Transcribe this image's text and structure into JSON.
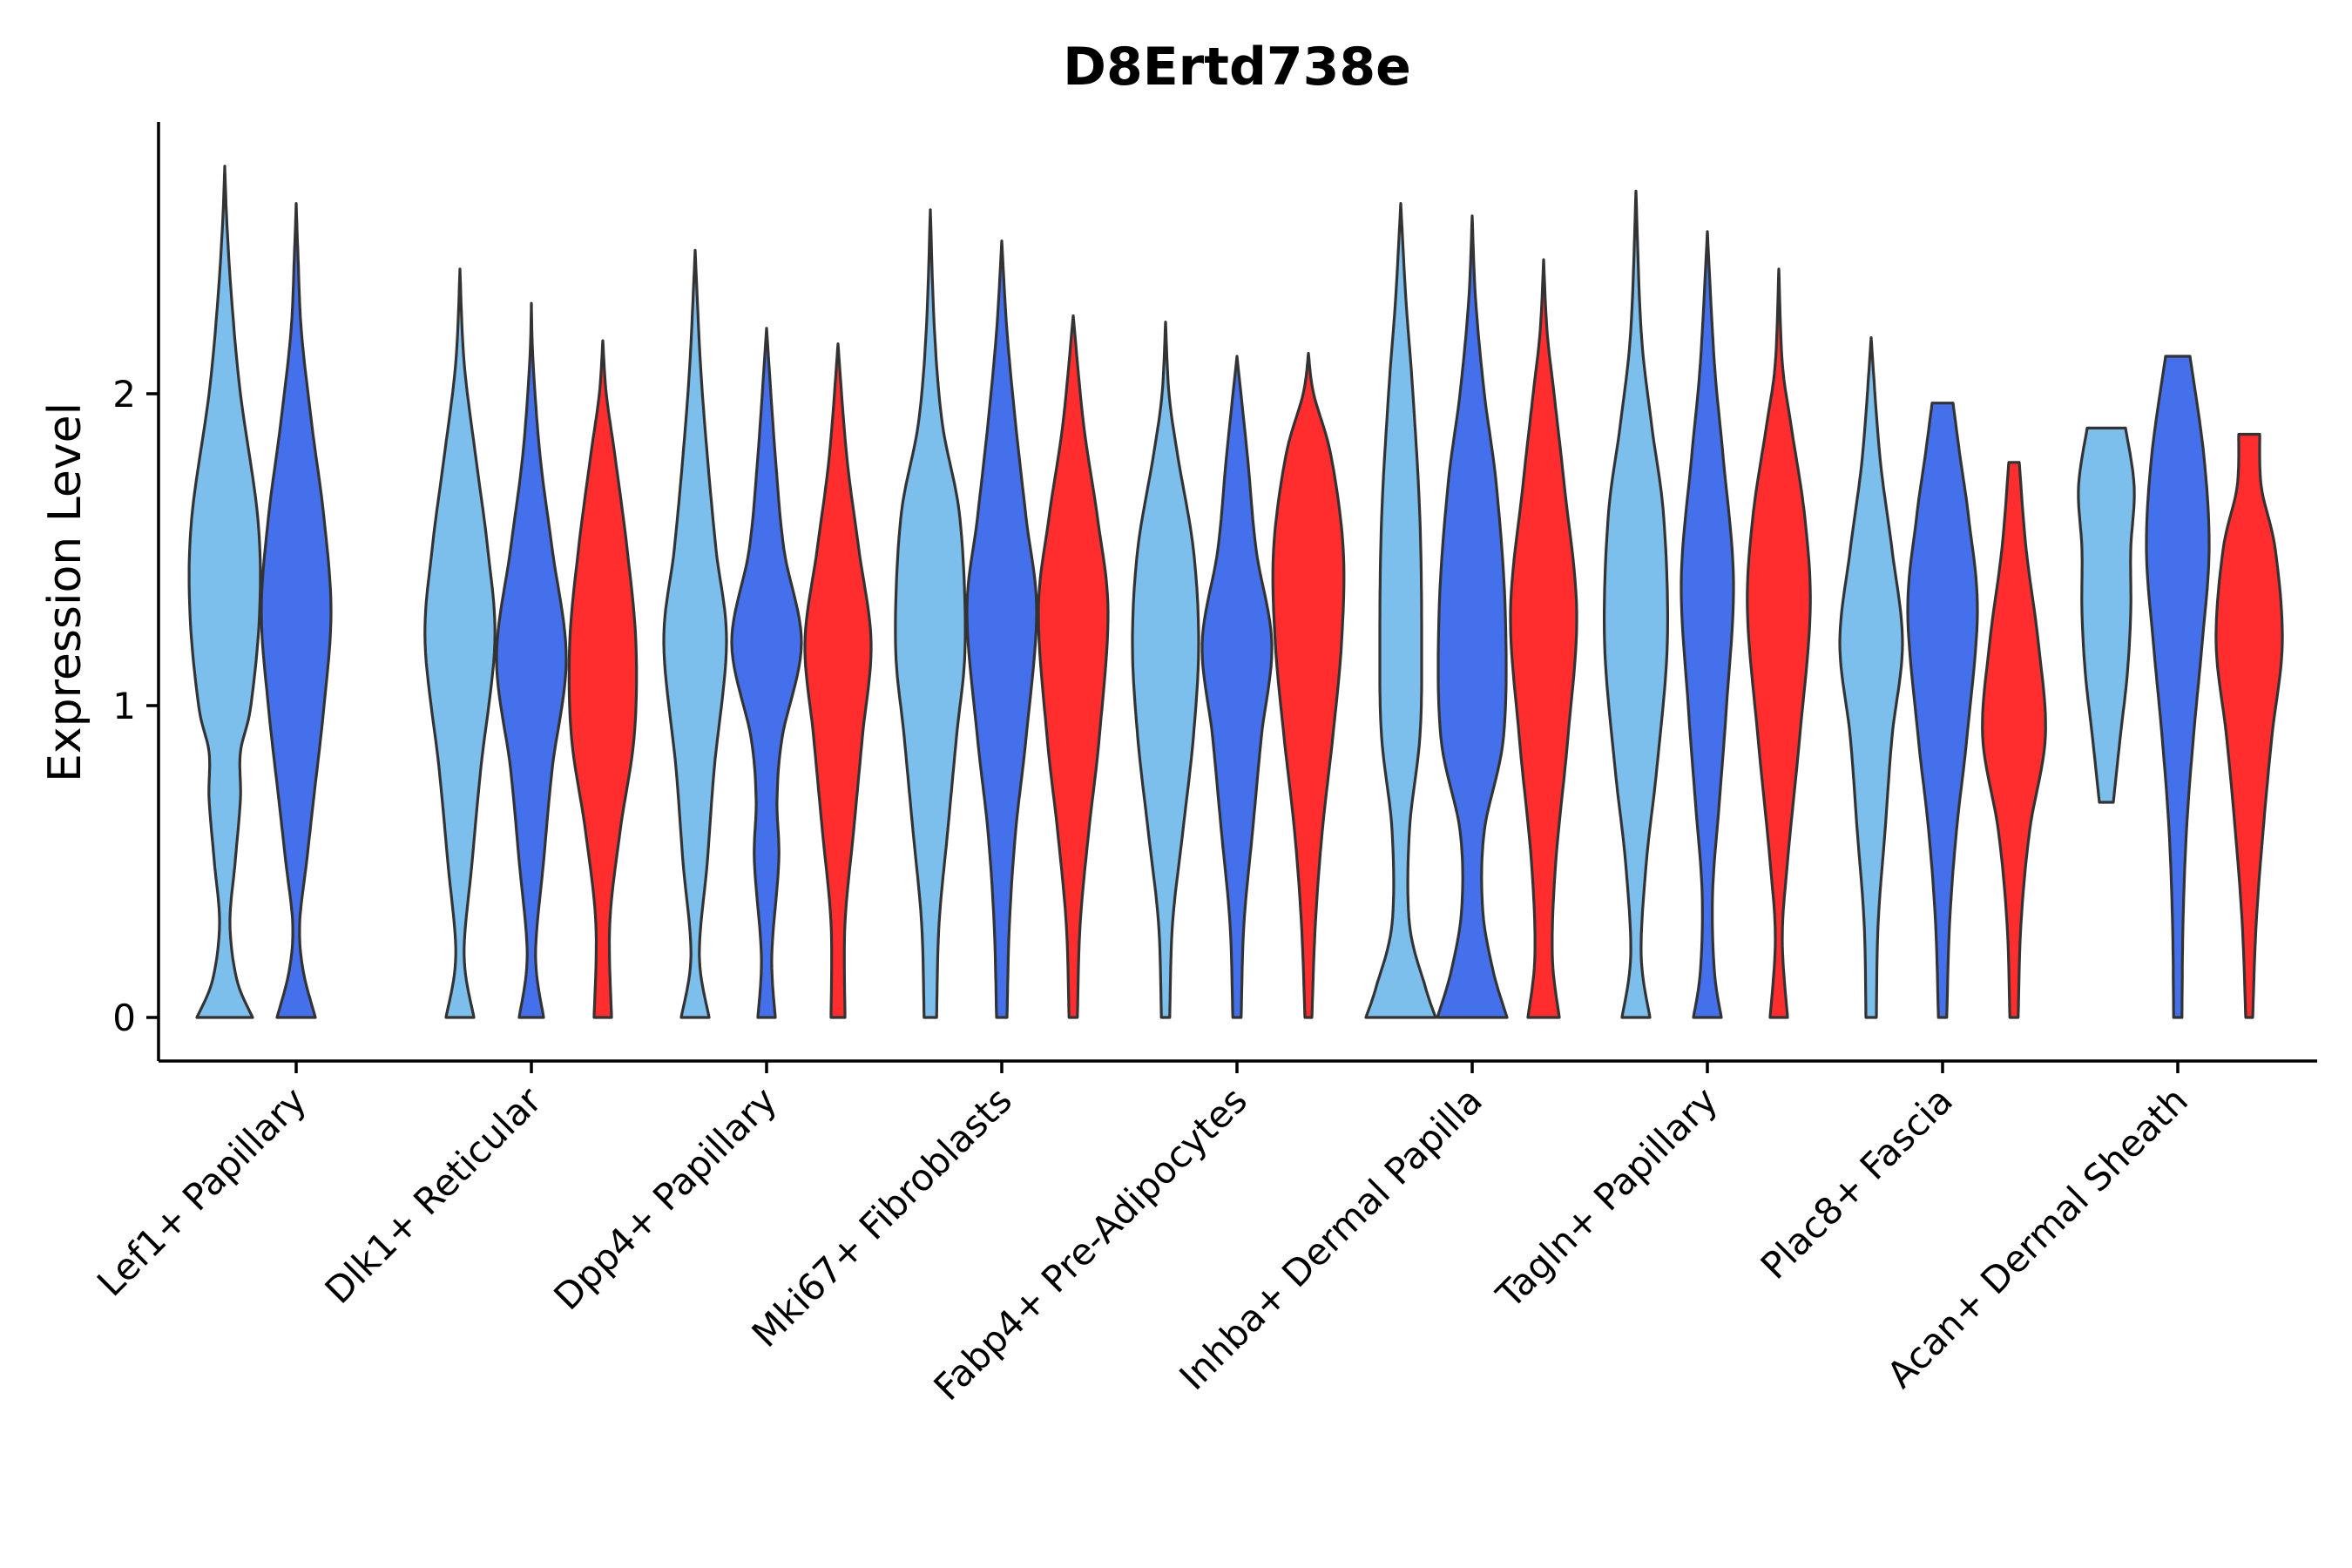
{
  "chart_data": {
    "type": "violin",
    "title": "D8Ertd738e",
    "xlabel": "",
    "ylabel": "Expression Level",
    "ylim": [
      -0.14,
      2.9
    ],
    "yticks": [
      0,
      1,
      2
    ],
    "grid": false,
    "legend": "none",
    "series_colors": [
      "#7DBFEC",
      "#4470EC",
      "#FF2D2D"
    ],
    "categories": [
      "Lef1+ Papillary",
      "Dlk1+ Reticular",
      "Dpp4+ Papillary",
      "Mki67+ Fibroblasts",
      "Fabp4+ Pre-Adipocytes",
      "Inhba+ Dermal Papilla",
      "Tagln+ Papillary",
      "Plac8+ Fascia",
      "Acan+ Dermal Sheath"
    ],
    "violins": [
      {
        "group": 0,
        "series": 0,
        "min": 0,
        "max": 2.73,
        "widths": [
          [
            0,
            0.8
          ],
          [
            0.12,
            0.35
          ],
          [
            0.3,
            0.15
          ],
          [
            0.5,
            0.3
          ],
          [
            0.7,
            0.45
          ],
          [
            0.85,
            0.45
          ],
          [
            1.0,
            0.75
          ],
          [
            1.3,
            1.0
          ],
          [
            1.6,
            0.95
          ],
          [
            2.0,
            0.45
          ],
          [
            2.3,
            0.2
          ],
          [
            2.55,
            0.06
          ],
          [
            2.73,
            0
          ]
        ]
      },
      {
        "group": 0,
        "series": 1,
        "min": 0,
        "max": 2.61,
        "widths": [
          [
            0,
            0.55
          ],
          [
            0.15,
            0.2
          ],
          [
            0.3,
            0.1
          ],
          [
            0.5,
            0.3
          ],
          [
            0.7,
            0.5
          ],
          [
            1.0,
            0.8
          ],
          [
            1.3,
            1.0
          ],
          [
            1.6,
            0.8
          ],
          [
            1.9,
            0.45
          ],
          [
            2.2,
            0.15
          ],
          [
            2.45,
            0.05
          ],
          [
            2.61,
            0
          ]
        ]
      },
      {
        "group": 1,
        "series": 0,
        "min": 0,
        "max": 2.4,
        "widths": [
          [
            0,
            0.4
          ],
          [
            0.2,
            0.12
          ],
          [
            0.5,
            0.35
          ],
          [
            0.8,
            0.6
          ],
          [
            1.2,
            1.0
          ],
          [
            1.5,
            0.8
          ],
          [
            1.8,
            0.45
          ],
          [
            2.1,
            0.12
          ],
          [
            2.4,
            0
          ]
        ]
      },
      {
        "group": 1,
        "series": 1,
        "min": 0,
        "max": 2.29,
        "widths": [
          [
            0,
            0.35
          ],
          [
            0.2,
            0.12
          ],
          [
            0.5,
            0.35
          ],
          [
            0.8,
            0.6
          ],
          [
            1.15,
            1.0
          ],
          [
            1.5,
            0.6
          ],
          [
            1.8,
            0.25
          ],
          [
            2.1,
            0.05
          ],
          [
            2.29,
            0
          ]
        ]
      },
      {
        "group": 1,
        "series": 2,
        "min": 0,
        "max": 2.17,
        "widths": [
          [
            0,
            0.25
          ],
          [
            0.3,
            0.2
          ],
          [
            0.6,
            0.5
          ],
          [
            0.9,
            0.9
          ],
          [
            1.2,
            0.95
          ],
          [
            1.5,
            0.7
          ],
          [
            1.8,
            0.35
          ],
          [
            2.0,
            0.1
          ],
          [
            2.17,
            0
          ]
        ]
      },
      {
        "group": 2,
        "series": 0,
        "min": 0,
        "max": 2.46,
        "widths": [
          [
            0,
            0.4
          ],
          [
            0.2,
            0.12
          ],
          [
            0.5,
            0.35
          ],
          [
            0.8,
            0.55
          ],
          [
            1.2,
            0.9
          ],
          [
            1.5,
            0.6
          ],
          [
            1.8,
            0.35
          ],
          [
            2.1,
            0.15
          ],
          [
            2.46,
            0
          ]
        ]
      },
      {
        "group": 2,
        "series": 1,
        "min": 0,
        "max": 2.21,
        "widths": [
          [
            0,
            0.25
          ],
          [
            0.2,
            0.15
          ],
          [
            0.5,
            0.35
          ],
          [
            0.7,
            0.3
          ],
          [
            0.9,
            0.45
          ],
          [
            1.2,
            1.0
          ],
          [
            1.5,
            0.5
          ],
          [
            1.8,
            0.25
          ],
          [
            2.21,
            0
          ]
        ]
      },
      {
        "group": 2,
        "series": 2,
        "min": 0,
        "max": 2.16,
        "widths": [
          [
            0,
            0.2
          ],
          [
            0.3,
            0.2
          ],
          [
            0.6,
            0.45
          ],
          [
            0.9,
            0.7
          ],
          [
            1.2,
            0.95
          ],
          [
            1.5,
            0.6
          ],
          [
            1.8,
            0.25
          ],
          [
            2.16,
            0
          ]
        ]
      },
      {
        "group": 3,
        "series": 0,
        "min": 0,
        "max": 2.59,
        "widths": [
          [
            0,
            0.18
          ],
          [
            0.3,
            0.25
          ],
          [
            0.6,
            0.5
          ],
          [
            0.9,
            0.75
          ],
          [
            1.2,
            1.0
          ],
          [
            1.6,
            0.85
          ],
          [
            1.9,
            0.35
          ],
          [
            2.2,
            0.12
          ],
          [
            2.59,
            0
          ]
        ]
      },
      {
        "group": 3,
        "series": 1,
        "min": 0,
        "max": 2.49,
        "widths": [
          [
            0,
            0.15
          ],
          [
            0.3,
            0.22
          ],
          [
            0.6,
            0.4
          ],
          [
            0.9,
            0.7
          ],
          [
            1.3,
            1.0
          ],
          [
            1.6,
            0.7
          ],
          [
            1.9,
            0.4
          ],
          [
            2.2,
            0.15
          ],
          [
            2.49,
            0
          ]
        ]
      },
      {
        "group": 3,
        "series": 2,
        "min": 0,
        "max": 2.25,
        "widths": [
          [
            0,
            0.12
          ],
          [
            0.3,
            0.2
          ],
          [
            0.6,
            0.45
          ],
          [
            0.9,
            0.75
          ],
          [
            1.3,
            1.0
          ],
          [
            1.6,
            0.7
          ],
          [
            1.9,
            0.3
          ],
          [
            2.25,
            0
          ]
        ]
      },
      {
        "group": 4,
        "series": 0,
        "min": 0,
        "max": 2.23,
        "widths": [
          [
            0,
            0.12
          ],
          [
            0.3,
            0.2
          ],
          [
            0.6,
            0.5
          ],
          [
            0.9,
            0.8
          ],
          [
            1.2,
            0.95
          ],
          [
            1.5,
            0.8
          ],
          [
            1.8,
            0.35
          ],
          [
            2.0,
            0.1
          ],
          [
            2.23,
            0
          ]
        ]
      },
      {
        "group": 4,
        "series": 1,
        "min": 0,
        "max": 2.12,
        "widths": [
          [
            0,
            0.12
          ],
          [
            0.3,
            0.2
          ],
          [
            0.6,
            0.45
          ],
          [
            0.9,
            0.7
          ],
          [
            1.2,
            1.0
          ],
          [
            1.5,
            0.55
          ],
          [
            1.8,
            0.3
          ],
          [
            2.12,
            0
          ]
        ]
      },
      {
        "group": 4,
        "series": 2,
        "min": 0,
        "max": 2.13,
        "widths": [
          [
            0,
            0.1
          ],
          [
            0.3,
            0.2
          ],
          [
            0.6,
            0.4
          ],
          [
            0.9,
            0.7
          ],
          [
            1.2,
            0.95
          ],
          [
            1.5,
            1.0
          ],
          [
            1.8,
            0.65
          ],
          [
            2.0,
            0.15
          ],
          [
            2.13,
            0
          ]
        ]
      },
      {
        "group": 5,
        "series": 0,
        "min": 0,
        "max": 2.61,
        "widths": [
          [
            0,
            1.0
          ],
          [
            0.1,
            0.7
          ],
          [
            0.3,
            0.25
          ],
          [
            0.6,
            0.25
          ],
          [
            0.9,
            0.55
          ],
          [
            1.2,
            0.6
          ],
          [
            1.6,
            0.55
          ],
          [
            2.0,
            0.35
          ],
          [
            2.3,
            0.15
          ],
          [
            2.61,
            0
          ]
        ]
      },
      {
        "group": 5,
        "series": 1,
        "min": 0,
        "max": 2.57,
        "widths": [
          [
            0,
            1.0
          ],
          [
            0.15,
            0.6
          ],
          [
            0.35,
            0.3
          ],
          [
            0.6,
            0.35
          ],
          [
            0.9,
            0.9
          ],
          [
            1.3,
            0.95
          ],
          [
            1.7,
            0.7
          ],
          [
            2.0,
            0.35
          ],
          [
            2.3,
            0.1
          ],
          [
            2.57,
            0
          ]
        ]
      },
      {
        "group": 5,
        "series": 2,
        "min": 0,
        "max": 2.43,
        "widths": [
          [
            0,
            0.45
          ],
          [
            0.2,
            0.25
          ],
          [
            0.5,
            0.35
          ],
          [
            0.9,
            0.7
          ],
          [
            1.3,
            0.95
          ],
          [
            1.7,
            0.6
          ],
          [
            2.0,
            0.3
          ],
          [
            2.2,
            0.1
          ],
          [
            2.43,
            0
          ]
        ]
      },
      {
        "group": 6,
        "series": 0,
        "min": 0,
        "max": 2.65,
        "widths": [
          [
            0,
            0.4
          ],
          [
            0.2,
            0.15
          ],
          [
            0.5,
            0.3
          ],
          [
            0.8,
            0.6
          ],
          [
            1.2,
            0.9
          ],
          [
            1.6,
            0.8
          ],
          [
            1.9,
            0.45
          ],
          [
            2.2,
            0.15
          ],
          [
            2.65,
            0
          ]
        ]
      },
      {
        "group": 6,
        "series": 1,
        "min": 0,
        "max": 2.52,
        "widths": [
          [
            0,
            0.4
          ],
          [
            0.15,
            0.2
          ],
          [
            0.4,
            0.15
          ],
          [
            0.7,
            0.35
          ],
          [
            1.0,
            0.55
          ],
          [
            1.4,
            0.75
          ],
          [
            1.8,
            0.45
          ],
          [
            2.1,
            0.2
          ],
          [
            2.52,
            0
          ]
        ]
      },
      {
        "group": 6,
        "series": 2,
        "min": 0,
        "max": 2.4,
        "widths": [
          [
            0,
            0.25
          ],
          [
            0.25,
            0.1
          ],
          [
            0.5,
            0.25
          ],
          [
            0.9,
            0.6
          ],
          [
            1.3,
            0.9
          ],
          [
            1.6,
            0.75
          ],
          [
            1.9,
            0.35
          ],
          [
            2.1,
            0.1
          ],
          [
            2.4,
            0
          ]
        ]
      },
      {
        "group": 7,
        "series": 0,
        "min": 0,
        "max": 2.18,
        "widths": [
          [
            0,
            0.15
          ],
          [
            0.3,
            0.2
          ],
          [
            0.6,
            0.4
          ],
          [
            0.9,
            0.6
          ],
          [
            1.2,
            0.9
          ],
          [
            1.5,
            0.6
          ],
          [
            1.8,
            0.25
          ],
          [
            2.18,
            0
          ]
        ]
      },
      {
        "group": 7,
        "series": 1,
        "min": 0,
        "max": 1.97,
        "widths": [
          [
            0,
            0.12
          ],
          [
            0.3,
            0.2
          ],
          [
            0.6,
            0.4
          ],
          [
            0.9,
            0.7
          ],
          [
            1.3,
            1.0
          ],
          [
            1.6,
            0.75
          ],
          [
            1.8,
            0.5
          ],
          [
            1.97,
            0.3
          ]
        ]
      },
      {
        "group": 7,
        "series": 2,
        "min": 0,
        "max": 1.78,
        "widths": [
          [
            0,
            0.12
          ],
          [
            0.3,
            0.2
          ],
          [
            0.6,
            0.45
          ],
          [
            0.9,
            0.9
          ],
          [
            1.2,
            0.7
          ],
          [
            1.5,
            0.35
          ],
          [
            1.78,
            0.15
          ]
        ]
      },
      {
        "group": 8,
        "series": 0,
        "min": 0.69,
        "max": 1.89,
        "widths": [
          [
            0.69,
            0.2
          ],
          [
            0.9,
            0.4
          ],
          [
            1.1,
            0.6
          ],
          [
            1.3,
            0.7
          ],
          [
            1.5,
            0.7
          ],
          [
            1.7,
            0.8
          ],
          [
            1.89,
            0.55
          ]
        ]
      },
      {
        "group": 8,
        "series": 1,
        "min": 0,
        "max": 2.12,
        "widths": [
          [
            0,
            0.12
          ],
          [
            0.3,
            0.15
          ],
          [
            0.6,
            0.25
          ],
          [
            0.9,
            0.45
          ],
          [
            1.2,
            0.7
          ],
          [
            1.5,
            0.9
          ],
          [
            1.8,
            0.75
          ],
          [
            2.12,
            0.35
          ]
        ]
      },
      {
        "group": 8,
        "series": 2,
        "min": 0,
        "max": 1.87,
        "widths": [
          [
            0,
            0.1
          ],
          [
            0.3,
            0.2
          ],
          [
            0.6,
            0.4
          ],
          [
            0.9,
            0.65
          ],
          [
            1.2,
            0.95
          ],
          [
            1.5,
            0.75
          ],
          [
            1.7,
            0.35
          ],
          [
            1.87,
            0.3
          ]
        ]
      }
    ]
  }
}
